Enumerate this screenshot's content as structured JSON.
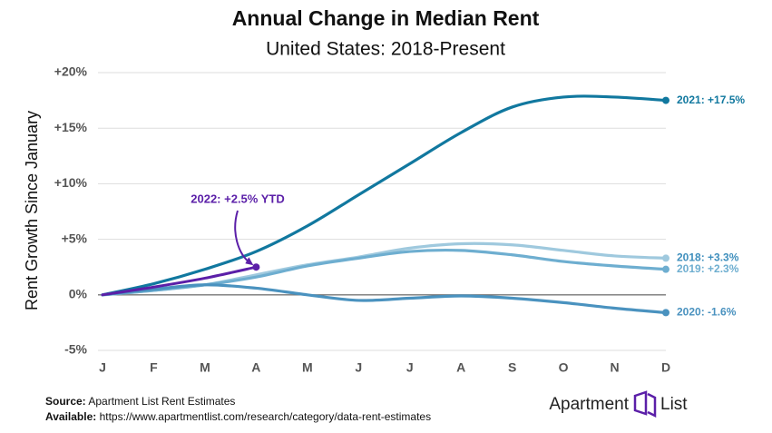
{
  "chart_data": {
    "type": "line",
    "title": "Annual Change in Median Rent",
    "subtitle": "United States: 2018-Present",
    "y_label": "Rent Growth Since January",
    "categories": [
      "J",
      "F",
      "M",
      "A",
      "M",
      "J",
      "J",
      "A",
      "S",
      "O",
      "N",
      "D"
    ],
    "ylim": [
      -5,
      20
    ],
    "yticks": [
      {
        "value": -5,
        "label": "-5%"
      },
      {
        "value": 0,
        "label": "0%"
      },
      {
        "value": 5,
        "label": "+5%"
      },
      {
        "value": 10,
        "label": "+10%"
      },
      {
        "value": 15,
        "label": "+15%"
      },
      {
        "value": 20,
        "label": "+20%"
      }
    ],
    "grid": true,
    "series": [
      {
        "name": "2021",
        "color": "#11789f",
        "end_label": "2021: +17.5%",
        "values": [
          0,
          1.0,
          2.3,
          3.9,
          6.2,
          9.0,
          11.8,
          14.6,
          16.9,
          17.8,
          17.8,
          17.5
        ]
      },
      {
        "name": "2018",
        "color": "#9fc9de",
        "end_label": "2018: +3.3%",
        "values": [
          0,
          0.4,
          0.9,
          1.8,
          2.7,
          3.4,
          4.2,
          4.6,
          4.5,
          4.0,
          3.5,
          3.3
        ]
      },
      {
        "name": "2019",
        "color": "#6eaed0",
        "end_label": "2019: +2.3%",
        "values": [
          0,
          0.4,
          0.9,
          1.6,
          2.6,
          3.3,
          3.9,
          4.0,
          3.6,
          3.0,
          2.6,
          2.3
        ]
      },
      {
        "name": "2020",
        "color": "#4a92bf",
        "end_label": "2020: -1.6%",
        "values": [
          0,
          0.5,
          0.9,
          0.6,
          0.0,
          -0.5,
          -0.3,
          -0.1,
          -0.3,
          -0.7,
          -1.2,
          -1.6
        ]
      },
      {
        "name": "2022",
        "color": "#5b1fa8",
        "end_label": "2022: +2.5% YTD",
        "values": [
          0,
          0.7,
          1.5,
          2.5,
          null,
          null,
          null,
          null,
          null,
          null,
          null,
          null
        ]
      }
    ]
  },
  "footer": {
    "source_label": "Source:",
    "source": "Apartment List Rent Estimates",
    "available_label": "Available:",
    "available": "https://www.apartmentlist.com/research/category/data-rent-estimates",
    "logo": "Apartment",
    "logo2": "List"
  }
}
